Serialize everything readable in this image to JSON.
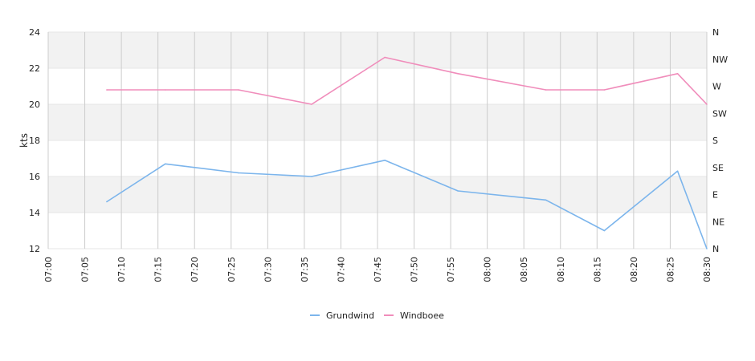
{
  "chart_data": {
    "type": "line",
    "xlabel": "",
    "ylabel": "kts",
    "y2label": "",
    "ylim": [
      12,
      24
    ],
    "y_ticks": [
      "24",
      "22",
      "20",
      "18",
      "16",
      "14",
      "12"
    ],
    "y2_ticks": [
      "N",
      "NW",
      "W",
      "SW",
      "S",
      "SE",
      "E",
      "NE",
      "N"
    ],
    "x_ticks": [
      "07:00",
      "07:05",
      "07:10",
      "07:15",
      "07:20",
      "07:25",
      "07:30",
      "07:35",
      "07:40",
      "07:45",
      "07:50",
      "07:55",
      "08:00",
      "08:05",
      "08:10",
      "08:15",
      "08:20",
      "08:25",
      "08:30"
    ],
    "x": [
      "07:08",
      "07:16",
      "07:26",
      "07:36",
      "07:46",
      "07:56",
      "08:08",
      "08:16",
      "08:26",
      "08:30"
    ],
    "series": [
      {
        "name": "Grundwind",
        "color": "#7cb5ec",
        "values": [
          14.6,
          16.7,
          16.2,
          16.0,
          16.9,
          15.2,
          14.7,
          13.0,
          16.3,
          12.0
        ]
      },
      {
        "name": "Windboee",
        "color": "#f08dbb",
        "values": [
          20.8,
          20.8,
          20.8,
          20.0,
          22.6,
          21.7,
          20.8,
          20.8,
          21.7,
          20.0
        ]
      }
    ],
    "grid": true,
    "legend": "bottom"
  }
}
